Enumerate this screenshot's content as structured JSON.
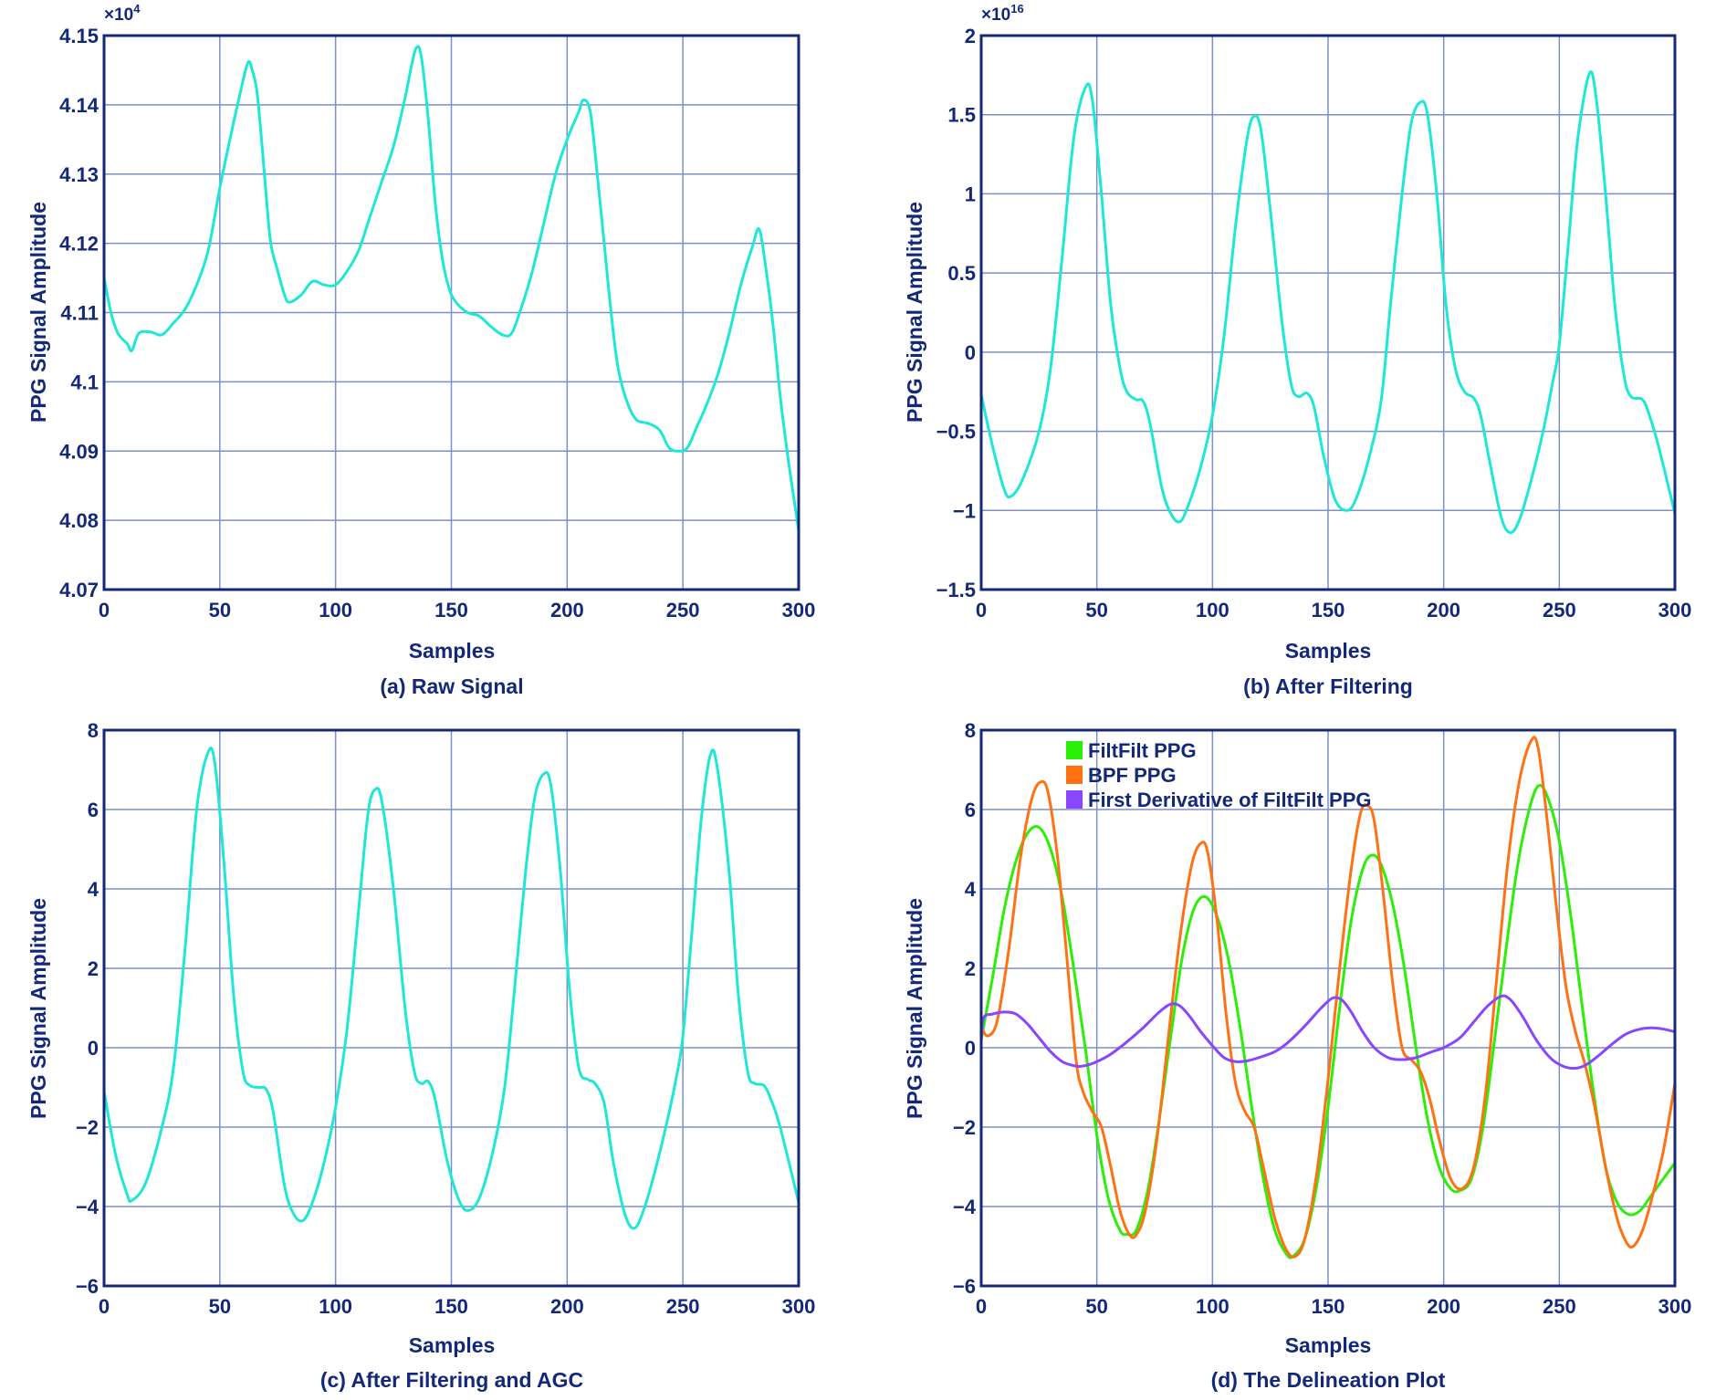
{
  "colors": {
    "axis": "#14287a",
    "grid": "#7d8fca",
    "signal": "#1de8d6",
    "text": "#14287a"
  },
  "chart_data": [
    {
      "id": "a",
      "type": "line",
      "caption": "(a) Raw Signal",
      "xlabel": "Samples",
      "ylabel": "PPG Signal Amplitude",
      "y_multiplier_label": "×10",
      "y_multiplier_exp": "4",
      "xlim": [
        0,
        300
      ],
      "ylim": [
        40700,
        41500
      ],
      "xticks": [
        0,
        50,
        100,
        150,
        200,
        250,
        300
      ],
      "xtick_labels": [
        "0",
        "50",
        "100",
        "150",
        "200",
        "250",
        "300"
      ],
      "yticks": [
        40700,
        40800,
        40900,
        41000,
        41100,
        41200,
        41300,
        41400,
        41500
      ],
      "ytick_labels": [
        "4.07",
        "4.08",
        "4.09",
        "4.1",
        "4.11",
        "4.12",
        "4.13",
        "4.14",
        "4.15"
      ],
      "grid": true,
      "series": [
        {
          "color": "#1de8d6",
          "x": [
            0,
            3,
            6,
            10,
            12,
            15,
            20,
            25,
            30,
            35,
            40,
            45,
            50,
            55,
            58,
            62,
            64,
            66,
            68,
            70,
            72,
            75,
            78,
            80,
            85,
            90,
            95,
            100,
            105,
            110,
            115,
            120,
            125,
            130,
            133,
            135,
            137,
            140,
            143,
            146,
            149,
            152,
            157,
            162,
            167,
            172,
            176,
            180,
            185,
            190,
            195,
            200,
            205,
            207,
            210,
            213,
            216,
            219,
            222,
            226,
            230,
            235,
            240,
            244,
            248,
            252,
            256,
            260,
            265,
            270,
            275,
            280,
            283,
            286,
            289,
            292,
            295,
            298,
            300
          ],
          "y": [
            41150,
            41100,
            41070,
            41055,
            41045,
            41070,
            41072,
            41068,
            41085,
            41105,
            41140,
            41190,
            41280,
            41360,
            41405,
            41460,
            41450,
            41420,
            41350,
            41270,
            41200,
            41160,
            41125,
            41115,
            41125,
            41145,
            41140,
            41140,
            41160,
            41190,
            41240,
            41290,
            41340,
            41410,
            41460,
            41483,
            41470,
            41380,
            41260,
            41180,
            41135,
            41115,
            41100,
            41095,
            41080,
            41068,
            41070,
            41105,
            41160,
            41230,
            41300,
            41350,
            41390,
            41407,
            41390,
            41300,
            41200,
            41100,
            41020,
            40970,
            40945,
            40940,
            40930,
            40905,
            40900,
            40905,
            40935,
            40965,
            41010,
            41070,
            41140,
            41195,
            41220,
            41160,
            41080,
            40980,
            40900,
            40830,
            40785
          ]
        }
      ]
    },
    {
      "id": "b",
      "type": "line",
      "caption": "(b) After Filtering",
      "xlabel": "Samples",
      "ylabel": "PPG Signal Amplitude",
      "y_multiplier_label": "×10",
      "y_multiplier_exp": "16",
      "xlim": [
        0,
        300
      ],
      "ylim": [
        -1.5,
        2
      ],
      "xticks": [
        0,
        50,
        100,
        150,
        200,
        250,
        300
      ],
      "xtick_labels": [
        "0",
        "50",
        "100",
        "150",
        "200",
        "250",
        "300"
      ],
      "yticks": [
        -1.5,
        -1,
        -0.5,
        0,
        0.5,
        1,
        1.5,
        2
      ],
      "ytick_labels": [
        "−1.5",
        "−1",
        "−0.5",
        "0",
        "0.5",
        "1",
        "1.5",
        "2"
      ],
      "grid": true,
      "series": [
        {
          "color": "#1de8d6",
          "x": [
            0,
            5,
            10,
            13,
            18,
            25,
            30,
            35,
            40,
            45,
            48,
            52,
            56,
            60,
            63,
            67,
            70,
            73,
            78,
            82,
            86,
            90,
            95,
            100,
            105,
            110,
            115,
            118,
            121,
            125,
            130,
            134,
            137,
            141,
            144,
            148,
            153,
            158,
            162,
            168,
            173,
            177,
            182,
            186,
            190,
            193,
            197,
            201,
            205,
            209,
            213,
            216,
            220,
            225,
            229,
            233,
            238,
            243,
            247,
            250,
            254,
            258,
            263,
            266,
            270,
            274,
            278,
            281,
            286,
            289,
            293,
            300
          ],
          "y": [
            -0.27,
            -0.6,
            -0.87,
            -0.91,
            -0.8,
            -0.5,
            -0.1,
            0.6,
            1.35,
            1.67,
            1.6,
            1.0,
            0.3,
            -0.1,
            -0.25,
            -0.3,
            -0.31,
            -0.45,
            -0.85,
            -1.02,
            -1.07,
            -0.95,
            -0.72,
            -0.4,
            0.1,
            0.8,
            1.35,
            1.49,
            1.4,
            0.9,
            0.2,
            -0.2,
            -0.28,
            -0.26,
            -0.35,
            -0.65,
            -0.93,
            -1.0,
            -0.93,
            -0.65,
            -0.3,
            0.3,
            1.0,
            1.45,
            1.58,
            1.5,
            1.0,
            0.3,
            -0.1,
            -0.25,
            -0.29,
            -0.4,
            -0.7,
            -1.05,
            -1.14,
            -1.05,
            -0.8,
            -0.5,
            -0.2,
            0.05,
            0.7,
            1.35,
            1.76,
            1.6,
            1.0,
            0.3,
            -0.15,
            -0.28,
            -0.3,
            -0.4,
            -0.6,
            -1.02
          ]
        }
      ]
    },
    {
      "id": "c",
      "type": "line",
      "caption": "(c) After Filtering and AGC",
      "xlabel": "Samples",
      "ylabel": "PPG Signal Amplitude",
      "xlim": [
        0,
        300
      ],
      "ylim": [
        -6,
        8
      ],
      "xticks": [
        0,
        50,
        100,
        150,
        200,
        250,
        300
      ],
      "xtick_labels": [
        "0",
        "50",
        "100",
        "150",
        "200",
        "250",
        "300"
      ],
      "yticks": [
        -6,
        -4,
        -2,
        0,
        2,
        4,
        6,
        8
      ],
      "ytick_labels": [
        "−6",
        "−4",
        "−2",
        "0",
        "2",
        "4",
        "6",
        "8"
      ],
      "grid": true,
      "series": [
        {
          "color": "#1de8d6",
          "x": [
            0,
            5,
            10,
            12,
            18,
            25,
            30,
            35,
            40,
            45,
            48,
            52,
            56,
            60,
            63,
            67,
            70,
            73,
            78,
            82,
            86,
            90,
            95,
            100,
            105,
            110,
            114,
            117,
            120,
            125,
            130,
            134,
            137,
            140,
            143,
            148,
            153,
            157,
            162,
            168,
            173,
            177,
            182,
            186,
            190,
            193,
            197,
            201,
            205,
            209,
            212,
            216,
            220,
            225,
            229,
            233,
            238,
            243,
            247,
            250,
            254,
            258,
            262,
            265,
            270,
            274,
            278,
            281,
            285,
            288,
            292,
            300
          ],
          "y": [
            -1.1,
            -2.7,
            -3.7,
            -3.85,
            -3.4,
            -2.0,
            -0.5,
            2.5,
            6.0,
            7.45,
            7.1,
            4.5,
            1.3,
            -0.6,
            -0.95,
            -1.0,
            -1.05,
            -1.6,
            -3.5,
            -4.2,
            -4.35,
            -3.9,
            -2.9,
            -1.5,
            0.5,
            3.5,
            5.9,
            6.5,
            6.2,
            4.0,
            1.0,
            -0.6,
            -0.9,
            -0.85,
            -1.3,
            -2.8,
            -3.8,
            -4.1,
            -3.8,
            -2.6,
            -1.0,
            1.3,
            4.4,
            6.3,
            6.9,
            6.6,
            4.5,
            1.5,
            -0.5,
            -0.8,
            -0.9,
            -1.4,
            -2.9,
            -4.2,
            -4.55,
            -4.1,
            -3.1,
            -1.9,
            -0.8,
            0.3,
            3.0,
            5.8,
            7.4,
            7.0,
            4.4,
            1.3,
            -0.6,
            -0.9,
            -0.95,
            -1.3,
            -2.0,
            -3.9
          ]
        }
      ]
    },
    {
      "id": "d",
      "type": "line",
      "caption": "(d) The Delineation Plot",
      "xlabel": "Samples",
      "ylabel": "PPG Signal Amplitude",
      "xlim": [
        0,
        300
      ],
      "ylim": [
        -6,
        8
      ],
      "xticks": [
        0,
        50,
        100,
        150,
        200,
        250,
        300
      ],
      "xtick_labels": [
        "0",
        "50",
        "100",
        "150",
        "200",
        "250",
        "300"
      ],
      "yticks": [
        -6,
        -4,
        -2,
        0,
        2,
        4,
        6,
        8
      ],
      "ytick_labels": [
        "−6",
        "−4",
        "−2",
        "0",
        "2",
        "4",
        "6",
        "8"
      ],
      "grid": true,
      "legend": "top-left",
      "series": [
        {
          "name": "FiltFilt PPG",
          "color": "#2bef06",
          "x": [
            0,
            5,
            10,
            15,
            20,
            25,
            30,
            35,
            40,
            45,
            50,
            55,
            60,
            63,
            67,
            72,
            77,
            82,
            87,
            92,
            97,
            102,
            107,
            112,
            117,
            122,
            127,
            132,
            135,
            140,
            145,
            150,
            155,
            160,
            165,
            169,
            173,
            178,
            183,
            188,
            193,
            198,
            203,
            207,
            212,
            217,
            222,
            227,
            232,
            237,
            241,
            245,
            250,
            255,
            260,
            265,
            270,
            275,
            280,
            285,
            290,
            295,
            300
          ],
          "y": [
            0.2,
            1.8,
            3.5,
            4.7,
            5.4,
            5.55,
            5.0,
            3.8,
            2.0,
            0.0,
            -2.2,
            -3.8,
            -4.6,
            -4.7,
            -4.6,
            -3.6,
            -1.8,
            0.3,
            2.3,
            3.5,
            3.8,
            3.3,
            2.2,
            0.5,
            -1.5,
            -3.3,
            -4.6,
            -5.2,
            -5.25,
            -4.8,
            -3.5,
            -1.5,
            1.0,
            3.2,
            4.5,
            4.85,
            4.6,
            3.6,
            2.0,
            0.0,
            -1.8,
            -3.0,
            -3.55,
            -3.6,
            -3.3,
            -2.0,
            0.2,
            2.5,
            4.6,
            6.0,
            6.6,
            6.3,
            5.2,
            3.3,
            1.0,
            -1.2,
            -3.0,
            -3.9,
            -4.2,
            -4.1,
            -3.7,
            -3.3,
            -2.9
          ]
        },
        {
          "name": "BPF PPG",
          "color": "#ff7113",
          "x": [
            0,
            3,
            7,
            12,
            17,
            22,
            26,
            29,
            33,
            37,
            41,
            44,
            48,
            52,
            56,
            60,
            64,
            67,
            71,
            76,
            81,
            86,
            91,
            95,
            98,
            102,
            106,
            110,
            114,
            118,
            122,
            127,
            132,
            136,
            140,
            145,
            150,
            155,
            160,
            164,
            167,
            170,
            174,
            178,
            182,
            186,
            190,
            194,
            198,
            203,
            208,
            213,
            218,
            223,
            228,
            233,
            238,
            241,
            245,
            249,
            253,
            257,
            261,
            265,
            270,
            275,
            279,
            282,
            286,
            290,
            295,
            300
          ],
          "y": [
            0.5,
            0.3,
            0.7,
            2.5,
            4.8,
            6.3,
            6.7,
            6.4,
            4.8,
            2.3,
            -0.3,
            -1.1,
            -1.6,
            -2.0,
            -3.0,
            -4.1,
            -4.7,
            -4.72,
            -4.1,
            -2.3,
            0.3,
            2.8,
            4.6,
            5.15,
            4.9,
            3.2,
            0.8,
            -0.9,
            -1.6,
            -2.0,
            -3.0,
            -4.3,
            -5.1,
            -5.25,
            -4.8,
            -3.2,
            -0.8,
            2.0,
            4.5,
            5.9,
            6.1,
            5.7,
            3.8,
            1.6,
            0.0,
            -0.3,
            -0.6,
            -1.3,
            -2.3,
            -3.3,
            -3.55,
            -3.0,
            -1.2,
            1.8,
            4.8,
            6.8,
            7.75,
            7.5,
            5.6,
            3.4,
            1.5,
            0.4,
            -0.4,
            -1.4,
            -3.0,
            -4.3,
            -4.9,
            -5.0,
            -4.6,
            -3.8,
            -2.6,
            -0.9
          ]
        },
        {
          "name": "First Derivative of FiltFilt PPG",
          "color": "#8a45ff",
          "x": [
            0,
            1,
            5,
            10,
            15,
            20,
            25,
            30,
            35,
            40,
            43,
            48,
            55,
            62,
            70,
            77,
            82,
            86,
            90,
            95,
            100,
            105,
            110,
            115,
            120,
            127,
            133,
            140,
            147,
            152,
            156,
            160,
            165,
            170,
            176,
            182,
            188,
            195,
            200,
            207,
            213,
            219,
            225,
            229,
            234,
            240,
            246,
            251,
            256,
            261,
            267,
            273,
            279,
            285,
            290,
            295,
            300
          ],
          "y": [
            0.2,
            0.75,
            0.85,
            0.9,
            0.85,
            0.6,
            0.25,
            -0.1,
            -0.35,
            -0.45,
            -0.47,
            -0.4,
            -0.2,
            0.1,
            0.5,
            0.9,
            1.1,
            1.05,
            0.8,
            0.4,
            0.05,
            -0.25,
            -0.35,
            -0.33,
            -0.25,
            -0.1,
            0.15,
            0.55,
            1.0,
            1.25,
            1.2,
            0.9,
            0.4,
            0.0,
            -0.25,
            -0.3,
            -0.25,
            -0.1,
            0.0,
            0.25,
            0.65,
            1.05,
            1.3,
            1.2,
            0.8,
            0.2,
            -0.25,
            -0.45,
            -0.52,
            -0.45,
            -0.2,
            0.1,
            0.35,
            0.47,
            0.5,
            0.47,
            0.4
          ]
        }
      ]
    }
  ]
}
